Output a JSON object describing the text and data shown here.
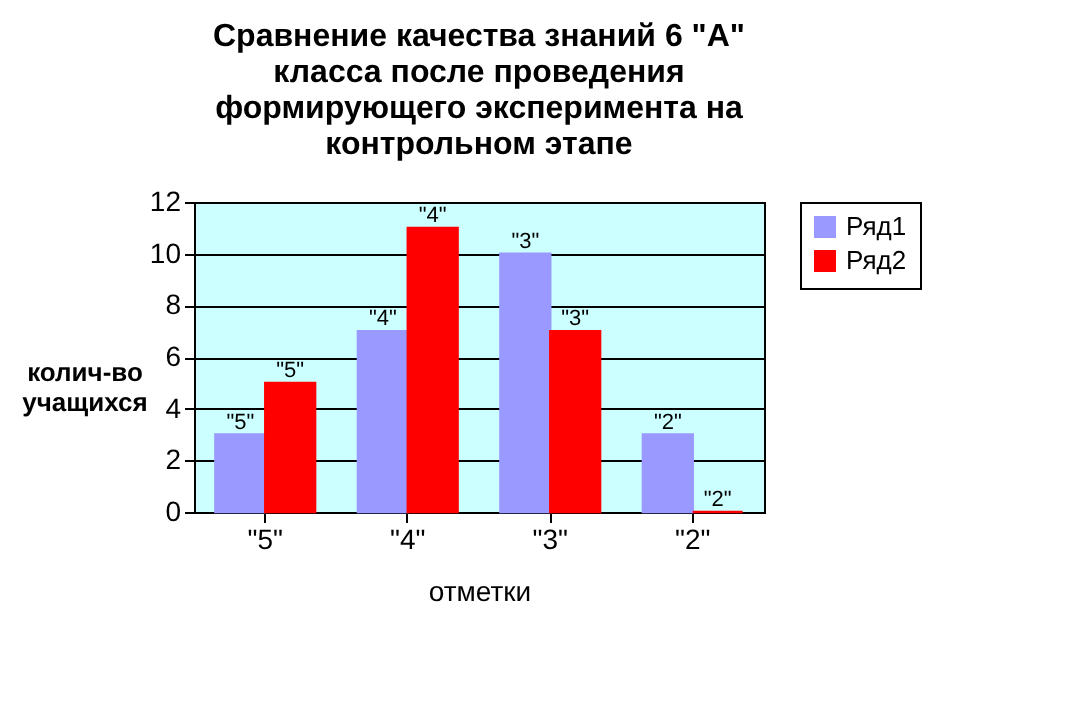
{
  "chart_data": {
    "type": "bar",
    "title": "Сравнение качества знаний 6 \"А\" класса после проведения формирующего эксперимента на контрольном этапе",
    "xlabel": "отметки",
    "ylabel": "колич-во учащихся",
    "categories": [
      "\"5\"",
      "\"4\"",
      "\"3\"",
      "\"2\""
    ],
    "series": [
      {
        "name": "Ряд1",
        "color": "#9999ff",
        "values": [
          3,
          7,
          10,
          3
        ]
      },
      {
        "name": "Ряд2",
        "color": "#ff0000",
        "values": [
          5,
          11,
          7,
          0
        ]
      }
    ],
    "annotations": [
      {
        "text": "\"5\"",
        "x": "\"5\"",
        "y": 3
      },
      {
        "text": "\"4\"",
        "x": "\"4\"",
        "y": 7
      },
      {
        "text": "\"3\"",
        "x": "\"3\"",
        "y": 10
      },
      {
        "text": "\"2\"",
        "x": "\"2\"",
        "y": 3
      },
      {
        "text": "\"5\"",
        "x": "\"5\"",
        "y": 5
      },
      {
        "text": "\"4\"",
        "x": "\"4\"",
        "y": 11
      },
      {
        "text": "\"3\"",
        "x": "\"3\"",
        "y": 7
      },
      {
        "text": "\"2\"",
        "x": "\"2\"",
        "y": 0
      }
    ],
    "ylim": [
      0,
      12
    ],
    "yticks": [
      0,
      2,
      4,
      6,
      8,
      10,
      12
    ],
    "grid": "y",
    "legend": "right"
  }
}
